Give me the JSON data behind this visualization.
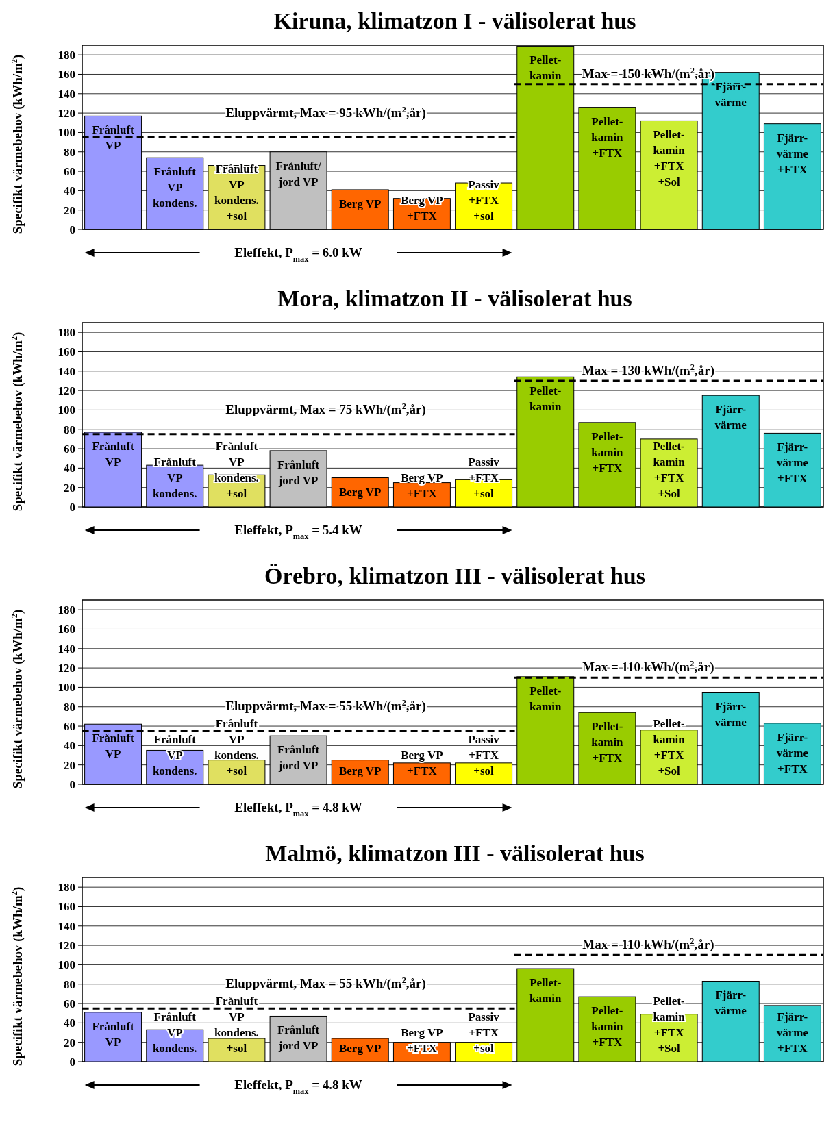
{
  "chart_data": [
    {
      "type": "bar",
      "title": "Kiruna, klimatzon I - välisolerat hus",
      "ylabel": "Specifikt värmebehov (kWh/m$^{2}$)",
      "categories": [
        "Frånluft\nVP",
        "Frånluft\nVP\nkondens.",
        "Frånluft\nVP\nkondens.\n+sol",
        "Frånluft/\njord VP",
        "Berg VP",
        "Berg VP\n+FTX",
        "Passiv\n+FTX\n+sol",
        "Pellet-\nkamin",
        "Pellet-\nkamin\n+FTX",
        "Pellet-\nkamin\n+FTX\n+Sol",
        "Fjärr-\nvärme",
        "Fjärr-\nvärme\n+FTX"
      ],
      "values": [
        117,
        74,
        66,
        80,
        41,
        32,
        48,
        189,
        126,
        112,
        162,
        109
      ],
      "colors": [
        "#9999ff",
        "#9999ff",
        "#e0e060",
        "#c0c0c0",
        "#ff6600",
        "#ff6600",
        "#ffff00",
        "#99cc00",
        "#99cc00",
        "#ccee33",
        "#33cccc",
        "#33cccc"
      ],
      "ylim": [
        0,
        190
      ],
      "yticks": [
        0,
        20,
        40,
        60,
        80,
        100,
        120,
        140,
        160,
        180
      ],
      "grid": "y",
      "ref_lines": [
        {
          "axis": "y",
          "value": 95,
          "label": "Eluppvärmt, Max = 95 kWh/(m$^{2}$,år)",
          "line_style": "dashed"
        },
        {
          "axis": "y",
          "value": 150,
          "label": "Max = 150 kWh/(m$^{2}$,år)",
          "line_style": "dashed"
        }
      ],
      "annotations": [
        "Eleffekt, P$_{max}$ = 6.0 kW"
      ]
    },
    {
      "type": "bar",
      "title": "Mora, klimatzon II - välisolerat hus",
      "ylabel": "Specifikt värmebehov (kWh/m$^{2}$)",
      "categories": [
        "Frånluft\nVP",
        "Frånluft\nVP\nkondens.",
        "Frånluft\nVP\nkondens.\n+sol",
        "Frånluft\njord VP",
        "Berg VP",
        "Berg VP\n+FTX",
        "Passiv\n+FTX\n+sol",
        "Pellet-\nkamin",
        "Pellet-\nkamin\n+FTX",
        "Pellet-\nkamin\n+FTX\n+Sol",
        "Fjärr-\nvärme",
        "Fjärr-\nvärme\n+FTX"
      ],
      "values": [
        77,
        43,
        33,
        58,
        30,
        25,
        28,
        134,
        87,
        70,
        115,
        76
      ],
      "colors": [
        "#9999ff",
        "#9999ff",
        "#e0e060",
        "#c0c0c0",
        "#ff6600",
        "#ff6600",
        "#ffff00",
        "#99cc00",
        "#99cc00",
        "#ccee33",
        "#33cccc",
        "#33cccc"
      ],
      "ylim": [
        0,
        190
      ],
      "yticks": [
        0,
        20,
        40,
        60,
        80,
        100,
        120,
        140,
        160,
        180
      ],
      "grid": "y",
      "ref_lines": [
        {
          "axis": "y",
          "value": 75,
          "label": "Eluppvärmt, Max = 75 kWh/(m$^{2}$,år)",
          "line_style": "dashed"
        },
        {
          "axis": "y",
          "value": 130,
          "label": "Max = 130 kWh/(m$^{2}$,år)",
          "line_style": "dashed"
        }
      ],
      "annotations": [
        "Eleffekt, P$_{max}$ = 5.4 kW"
      ]
    },
    {
      "type": "bar",
      "title": "Örebro, klimatzon III - välisolerat hus",
      "ylabel": "Specifikt värmebehov (kWh/m$^{2}$)",
      "categories": [
        "Frånluft\nVP",
        "Frånluft\nVP\nkondens.",
        "Frånluft\nVP\nkondens.\n+sol",
        "Frånluft\njord VP",
        "Berg VP",
        "Berg VP\n+FTX",
        "Passiv\n+FTX\n+sol",
        "Pellet-\nkamin",
        "Pellet-\nkamin\n+FTX",
        "Pellet-\nkamin\n+FTX\n+Sol",
        "Fjärr-\nvärme",
        "Fjärr-\nvärme\n+FTX"
      ],
      "values": [
        62,
        35,
        25,
        50,
        25,
        22,
        22,
        111,
        74,
        56,
        95,
        63
      ],
      "colors": [
        "#9999ff",
        "#9999ff",
        "#e0e060",
        "#c0c0c0",
        "#ff6600",
        "#ff6600",
        "#ffff00",
        "#99cc00",
        "#99cc00",
        "#ccee33",
        "#33cccc",
        "#33cccc"
      ],
      "ylim": [
        0,
        190
      ],
      "yticks": [
        0,
        20,
        40,
        60,
        80,
        100,
        120,
        140,
        160,
        180
      ],
      "grid": "y",
      "ref_lines": [
        {
          "axis": "y",
          "value": 55,
          "label": "Eluppvärmt, Max = 55 kWh/(m$^{2}$,år)",
          "line_style": "dashed"
        },
        {
          "axis": "y",
          "value": 110,
          "label": "Max = 110 kWh/(m$^{2}$,år)",
          "line_style": "dashed"
        }
      ],
      "annotations": [
        "Eleffekt, P$_{max}$ = 4.8 kW"
      ]
    },
    {
      "type": "bar",
      "title": "Malmö, klimatzon III - välisolerat hus",
      "ylabel": "Specifikt värmebehov (kWh/m$^{2}$)",
      "categories": [
        "Frånluft\nVP",
        "Frånluft\nVP\nkondens.",
        "Frånluft\nVP\nkondens.\n+sol",
        "Frånluft\njord VP",
        "Berg VP",
        "Berg VP\n+FTX",
        "Passiv\n+FTX\n+sol",
        "Pellet-\nkamin",
        "Pellet-\nkamin\n+FTX",
        "Pellet-\nkamin\n+FTX\n+Sol",
        "Fjärr-\nvärme",
        "Fjärr-\nvärme\n+FTX"
      ],
      "values": [
        51,
        33,
        24,
        47,
        24,
        20,
        20,
        96,
        67,
        49,
        83,
        58
      ],
      "colors": [
        "#9999ff",
        "#9999ff",
        "#e0e060",
        "#c0c0c0",
        "#ff6600",
        "#ff6600",
        "#ffff00",
        "#99cc00",
        "#99cc00",
        "#ccee33",
        "#33cccc",
        "#33cccc"
      ],
      "ylim": [
        0,
        190
      ],
      "yticks": [
        0,
        20,
        40,
        60,
        80,
        100,
        120,
        140,
        160,
        180
      ],
      "grid": "y",
      "ref_lines": [
        {
          "axis": "y",
          "value": 55,
          "label": "Eluppvärmt, Max = 55 kWh/(m$^{2}$,år)",
          "line_style": "dashed"
        },
        {
          "axis": "y",
          "value": 110,
          "label": "Max = 110 kWh/(m$^{2}$,år)",
          "line_style": "dashed"
        }
      ],
      "annotations": [
        "Eleffekt, P$_{max}$ = 4.8 kW"
      ]
    }
  ]
}
